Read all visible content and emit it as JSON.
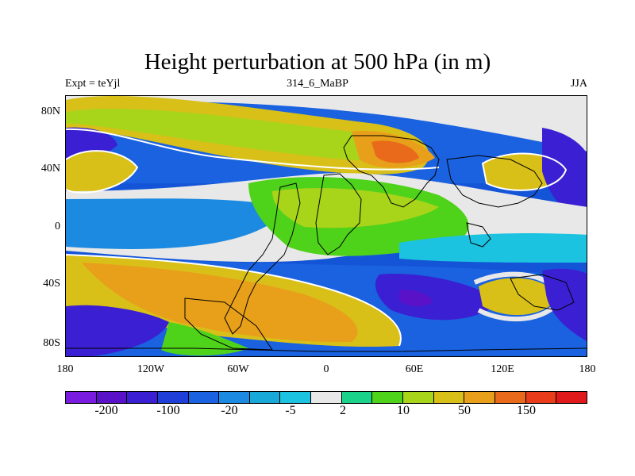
{
  "title": "Height perturbation at 500 hPa (in m)",
  "subtitle_left": "Expt = teYjl",
  "subtitle_center": "314_6_MaBP",
  "subtitle_right": "JJA",
  "lat_labels": [
    "80N",
    "40N",
    "0",
    "40S",
    "80S"
  ],
  "lon_labels": [
    "180",
    "120W",
    "60W",
    "0",
    "60E",
    "120E",
    "180"
  ],
  "colorbar": {
    "colors": [
      "#7a1be0",
      "#5a12c8",
      "#3b1fd2",
      "#1f3fd8",
      "#1a62e0",
      "#1c8ae0",
      "#19a9d8",
      "#1cc3e0",
      "#e8e8e8",
      "#1ad28a",
      "#4fd21a",
      "#a8d41a",
      "#d8c019",
      "#e8a01a",
      "#e86a1a",
      "#e83c1a",
      "#e01a1a"
    ],
    "labels": [
      "-200",
      "-100",
      "-20",
      "-5",
      "2",
      "10",
      "50",
      "150"
    ]
  },
  "map_regions": [
    {
      "level": "strong_negative",
      "color": "#3b1fd2"
    },
    {
      "level": "negative",
      "color": "#1a62e0"
    },
    {
      "level": "weak_negative",
      "color": "#1cc3e0"
    },
    {
      "level": "near_zero",
      "color": "#e8e8e8"
    },
    {
      "level": "weak_positive",
      "color": "#4fd21a"
    },
    {
      "level": "positive",
      "color": "#d8c019"
    },
    {
      "level": "strong_positive",
      "color": "#e8a01a"
    },
    {
      "level": "very_strong_positive",
      "color": "#e86a1a"
    }
  ]
}
